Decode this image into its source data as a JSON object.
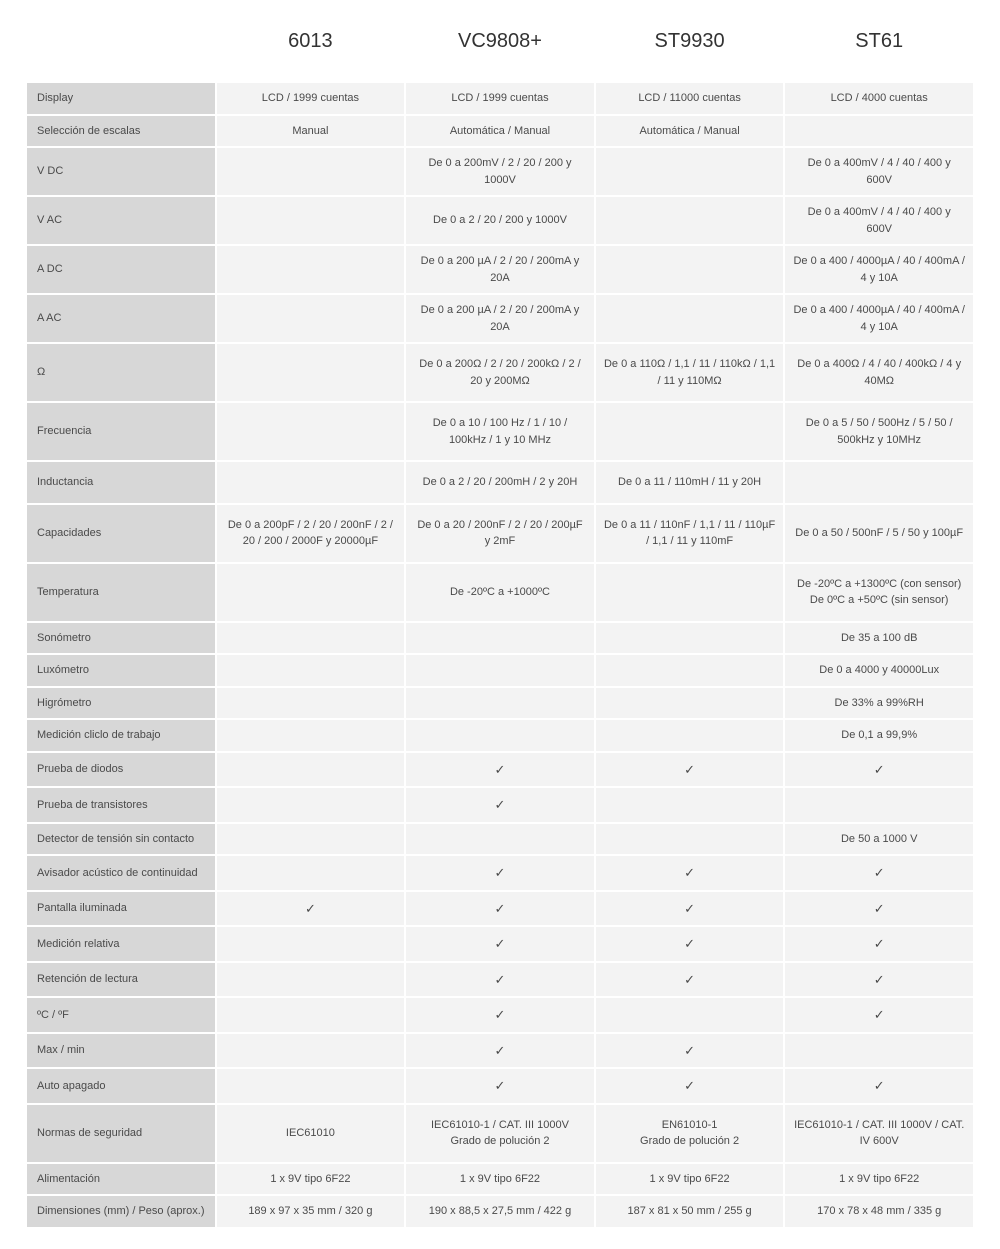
{
  "table": {
    "columns": [
      "6013",
      "VC9808+",
      "ST9930",
      "ST61"
    ],
    "label_bg": "#d7d7d7",
    "value_bg": "#f3f3f3",
    "text_color": "#4a4a4a",
    "header_fontsize": 20,
    "cell_fontsize": 11,
    "check_glyph": "✓",
    "rows": [
      {
        "label": "Display",
        "values": [
          "LCD / 1999 cuentas",
          "LCD / 1999 cuentas",
          "LCD / 11000 cuentas",
          "LCD / 4000 cuentas"
        ]
      },
      {
        "label": "Selección de escalas",
        "values": [
          "Manual",
          "Automática / Manual",
          "Automática / Manual",
          ""
        ]
      },
      {
        "label": "V DC",
        "values": [
          "",
          "De 0 a 200mV / 2 / 20 / 200 y 1000V",
          "",
          "De 0 a 400mV / 4 / 40 / 400 y 600V"
        ]
      },
      {
        "label": "V AC",
        "values": [
          "",
          "De 0 a 2 / 20 / 200 y 1000V",
          "",
          "De 0 a 400mV / 4 / 40 / 400 y 600V"
        ]
      },
      {
        "label": "A DC",
        "values": [
          "",
          "De 0 a 200 µA / 2 / 20 / 200mA y 20A",
          "",
          "De 0 a 400 / 4000µA / 40 / 400mA / 4 y 10A"
        ]
      },
      {
        "label": "A AC",
        "values": [
          "",
          "De 0 a 200 µA / 2 / 20 / 200mA y 20A",
          "",
          "De 0 a 400 / 4000µA / 40 / 400mA / 4 y 10A"
        ]
      },
      {
        "label": "Ω",
        "tall": true,
        "values": [
          "",
          "De 0 a 200Ω / 2 / 20 / 200kΩ / 2 / 20 y 200MΩ",
          "De 0 a 110Ω / 1,1 / 11 / 110kΩ / 1,1 / 11 y 110MΩ",
          "De 0 a 400Ω / 4 / 40 / 400kΩ / 4 y 40MΩ"
        ]
      },
      {
        "label": "Frecuencia",
        "tall": true,
        "values": [
          "",
          "De 0 a 10 / 100 Hz / 1 / 10 / 100kHz / 1 y 10 MHz",
          "",
          "De 0 a 5 / 50 / 500Hz / 5 / 50 / 500kHz y 10MHz"
        ]
      },
      {
        "label": "Inductancia",
        "tall": true,
        "values": [
          "",
          "De 0 a 2 / 20 / 200mH / 2 y 20H",
          "De 0 a 11 / 110mH / 11 y 20H",
          ""
        ]
      },
      {
        "label": "Capacidades",
        "tall": true,
        "values": [
          "De 0 a 200pF / 2 / 20 / 200nF / 2 / 20 / 200 / 2000F y 20000µF",
          "De 0 a 20 / 200nF / 2 / 20 / 200µF y 2mF",
          "De 0 a 11 / 110nF / 1,1 / 11 / 110µF / 1,1 / 11 y 110mF",
          "De 0 a 50 / 500nF / 5 / 50 y 100µF"
        ]
      },
      {
        "label": "Temperatura",
        "tall": true,
        "values": [
          "",
          "De -20ºC a +1000ºC",
          "",
          "De -20ºC a +1300ºC (con sensor)\nDe 0ºC a +50ºC (sin sensor)"
        ]
      },
      {
        "label": "Sonómetro",
        "values": [
          "",
          "",
          "",
          "De 35 a 100 dB"
        ]
      },
      {
        "label": "Luxómetro",
        "values": [
          "",
          "",
          "",
          "De 0 a 4000 y 40000Lux"
        ]
      },
      {
        "label": "Higrómetro",
        "values": [
          "",
          "",
          "",
          "De 33% a 99%RH"
        ]
      },
      {
        "label": "Medición cliclo de trabajo",
        "values": [
          "",
          "",
          "",
          "De 0,1 a 99,9%"
        ]
      },
      {
        "label": "Prueba de diodos",
        "values": [
          "",
          "✓",
          "✓",
          "✓"
        ]
      },
      {
        "label": "Prueba de transistores",
        "values": [
          "",
          "✓",
          "",
          ""
        ]
      },
      {
        "label": "Detector de tensión sin contacto",
        "values": [
          "",
          "",
          "",
          "De 50 a 1000 V"
        ]
      },
      {
        "label": "Avisador acústico de continuidad",
        "values": [
          "",
          "✓",
          "✓",
          "✓"
        ]
      },
      {
        "label": "Pantalla iluminada",
        "values": [
          "✓",
          "✓",
          "✓",
          "✓"
        ]
      },
      {
        "label": "Medición relativa",
        "values": [
          "",
          "✓",
          "✓",
          "✓"
        ]
      },
      {
        "label": "Retención de lectura",
        "values": [
          "",
          "✓",
          "✓",
          "✓"
        ]
      },
      {
        "label": "ºC / ºF",
        "values": [
          "",
          "✓",
          "",
          "✓"
        ]
      },
      {
        "label": "Max / min",
        "values": [
          "",
          "✓",
          "✓",
          ""
        ]
      },
      {
        "label": "Auto apagado",
        "values": [
          "",
          "✓",
          "✓",
          "✓"
        ]
      },
      {
        "label": "Normas de seguridad",
        "tall": true,
        "values": [
          "IEC61010",
          "IEC61010-1 / CAT. III 1000V\nGrado de polución 2",
          "EN61010-1\nGrado de polución 2",
          "IEC61010-1 / CAT. III 1000V / CAT. IV 600V"
        ]
      },
      {
        "label": "Alimentación",
        "values": [
          "1 x 9V tipo 6F22",
          "1 x 9V tipo 6F22",
          "1 x 9V tipo 6F22",
          "1 x 9V tipo 6F22"
        ]
      },
      {
        "label": "Dimensiones (mm) / Peso (aprox.)",
        "values": [
          "189 x 97 x 35 mm / 320 g",
          "190 x 88,5 x 27,5 mm / 422 g",
          "187 x 81 x 50 mm / 255 g",
          "170 x 78 x 48 mm / 335 g"
        ]
      }
    ]
  }
}
